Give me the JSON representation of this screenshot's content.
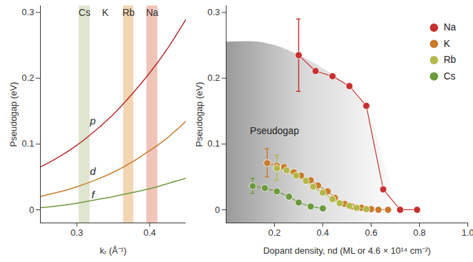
{
  "chart_data": [
    {
      "type": "line",
      "xlabel": "kᵣ (Å⁻¹)",
      "ylabel": "Pseudogap (eV)",
      "xlim": [
        0.25,
        0.45
      ],
      "xticks": [
        0.3,
        0.4
      ],
      "ylim": [
        -0.02,
        0.31
      ],
      "yticks": [
        0,
        0.1,
        0.2,
        0.3
      ],
      "x": [
        0.25,
        0.275,
        0.3,
        0.325,
        0.35,
        0.375,
        0.4,
        0.425,
        0.45
      ],
      "series": [
        {
          "name": "p",
          "color": "#b8262b",
          "values": [
            0.065,
            0.08,
            0.098,
            0.12,
            0.145,
            0.175,
            0.208,
            0.246,
            0.29
          ]
        },
        {
          "name": "d",
          "color": "#c97a2b",
          "values": [
            0.02,
            0.027,
            0.035,
            0.045,
            0.057,
            0.072,
            0.09,
            0.11,
            0.135
          ]
        },
        {
          "name": "f",
          "color": "#6c9a3d",
          "values": [
            0.003,
            0.006,
            0.01,
            0.015,
            0.02,
            0.026,
            0.032,
            0.04,
            0.048
          ]
        }
      ],
      "annotations": [
        {
          "text": "p",
          "x": 0.322,
          "y": 0.135
        },
        {
          "text": "d",
          "x": 0.322,
          "y": 0.058
        },
        {
          "text": "f",
          "x": 0.322,
          "y": 0.022
        }
      ],
      "bands": [
        {
          "name": "Cs",
          "xrange": [
            0.303,
            0.318
          ],
          "color": "#dfe6cf"
        },
        {
          "name": "K",
          "xrange": [
            0.339,
            0.339
          ]
        },
        {
          "name": "Rb",
          "xrange": [
            0.364,
            0.378
          ],
          "color": "#f2d6b3"
        },
        {
          "name": "Na",
          "xrange": [
            0.396,
            0.411
          ],
          "color": "#f1c4b9"
        }
      ]
    },
    {
      "type": "line",
      "xlabel": "Dopant density, nd (ML or 4.6 × 10¹⁴ cm⁻²)",
      "ylabel": "Pseudogap (eV)",
      "xlim": [
        0,
        1.0
      ],
      "xticks": [
        0.2,
        0.4,
        0.6,
        0.8,
        {
          "value": 1,
          "label": "1.0"
        }
      ],
      "ylim": [
        -0.02,
        0.31
      ],
      "yticks": [
        0,
        0.1,
        0.2,
        0.3
      ],
      "legend": "top-right",
      "marker": "circle",
      "region": {
        "label": "Pseudogap",
        "x": [
          0,
          0.1,
          0.2,
          0.3,
          0.4,
          0.5,
          0.55,
          0.6,
          0.65,
          0.7,
          0.72
        ],
        "values": [
          0.255,
          0.256,
          0.25,
          0.235,
          0.215,
          0.19,
          0.17,
          0.14,
          0.08,
          0.02,
          0
        ]
      },
      "annotations": [
        {
          "text": "Pseudogap",
          "x": 0.2,
          "y": 0.12
        }
      ],
      "series": [
        {
          "name": "Na",
          "color": "#c7302f",
          "x": [
            0.3,
            0.37,
            0.44,
            0.51,
            0.58,
            0.65,
            0.72,
            0.79
          ],
          "values": [
            0.235,
            0.211,
            0.203,
            0.188,
            0.158,
            0.031,
            0,
            0
          ],
          "error": [
            [
              0.18,
              0.29
            ],
            null,
            null,
            null,
            null,
            null,
            null,
            null
          ]
        },
        {
          "name": "K",
          "color": "#c97a2b",
          "x": [
            0.17,
            0.21,
            0.24,
            0.28,
            0.31,
            0.35,
            0.38,
            0.42,
            0.45,
            0.49,
            0.52,
            0.56,
            0.6,
            0.63,
            0.67
          ],
          "values": [
            0.071,
            0.067,
            0.065,
            0.057,
            0.052,
            0.045,
            0.037,
            0.028,
            0.018,
            0.009,
            0.005,
            0.003,
            0.001,
            0,
            0
          ],
          "error": [
            [
              0.05,
              0.093
            ],
            null,
            null,
            null,
            null,
            null,
            null,
            null,
            null,
            null,
            null,
            null,
            null,
            null,
            null
          ]
        },
        {
          "name": "Rb",
          "color": "#b3b84a",
          "x": [
            0.21,
            0.25,
            0.29,
            0.33,
            0.36,
            0.4,
            0.44,
            0.47,
            0.51,
            0.54,
            0.58
          ],
          "values": [
            0.063,
            0.06,
            0.052,
            0.044,
            0.035,
            0.026,
            0.016,
            0.01,
            0.006,
            0.003,
            0.001
          ],
          "error": [
            [
              0.045,
              0.083
            ],
            null,
            null,
            null,
            null,
            null,
            null,
            null,
            null,
            null,
            null
          ]
        },
        {
          "name": "Cs",
          "color": "#6c9a3d",
          "x": [
            0.11,
            0.16,
            0.21,
            0.26,
            0.3,
            0.35,
            0.4
          ],
          "values": [
            0.036,
            0.033,
            0.028,
            0.02,
            0.011,
            0.005,
            0.002
          ],
          "error": [
            [
              0.025,
              0.048
            ],
            null,
            null,
            null,
            null,
            null,
            null
          ]
        }
      ]
    }
  ]
}
